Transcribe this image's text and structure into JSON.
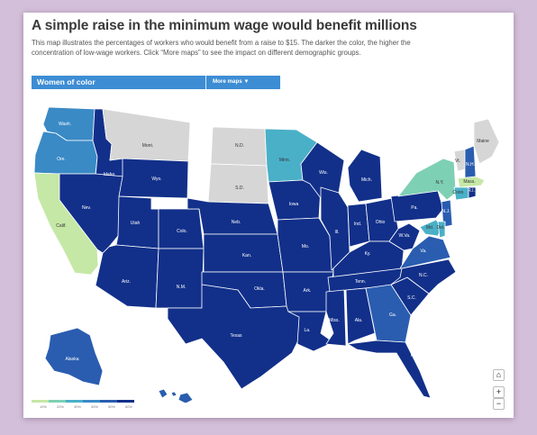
{
  "header": {
    "title": "A simple raise in the minimum wage would benefit millions",
    "description_1": "This map illustrates the percentages of workers who would benefit from a raise to $15. The darker the color, the higher the",
    "description_2": "concentration of low-wage workers. Click “More maps” to see the impact on different demographic groups."
  },
  "selector": {
    "label": "Women of color",
    "more_button": "More maps ▼"
  },
  "colors": {
    "no_data": "#d6d6d6",
    "c10": "#c5e8a6",
    "c20": "#7ed0b4",
    "c30": "#4ab0c8",
    "c40": "#3a8ac6",
    "c50": "#2a5db0",
    "c60": "#12308a"
  },
  "legend": {
    "ticks": [
      "10%",
      "20%",
      "30%",
      "40%",
      "50%",
      "60%"
    ]
  },
  "states": [
    {
      "label": "Wash.",
      "class": "c40"
    },
    {
      "label": "Ore.",
      "class": "c40"
    },
    {
      "label": "Calif.",
      "class": "c10"
    },
    {
      "label": "Idaho",
      "class": "c60"
    },
    {
      "label": "Nev.",
      "class": "c60"
    },
    {
      "label": "Mont.",
      "class": "no_data"
    },
    {
      "label": "Wyo.",
      "class": "c60"
    },
    {
      "label": "Utah",
      "class": "c60"
    },
    {
      "label": "Ariz.",
      "class": "c60"
    },
    {
      "label": "Colo.",
      "class": "c60"
    },
    {
      "label": "N.M.",
      "class": "c60"
    },
    {
      "label": "N.D.",
      "class": "no_data"
    },
    {
      "label": "S.D.",
      "class": "no_data"
    },
    {
      "label": "Neb.",
      "class": "c60"
    },
    {
      "label": "Kan.",
      "class": "c60"
    },
    {
      "label": "Okla.",
      "class": "c60"
    },
    {
      "label": "Texas",
      "class": "c60"
    },
    {
      "label": "Minn.",
      "class": "c30"
    },
    {
      "label": "Iowa",
      "class": "c60"
    },
    {
      "label": "Mo.",
      "class": "c60"
    },
    {
      "label": "Ark.",
      "class": "c60"
    },
    {
      "label": "La.",
      "class": "c60"
    },
    {
      "label": "Wis.",
      "class": "c60"
    },
    {
      "label": "Ill.",
      "class": "c60"
    },
    {
      "label": "Mich.",
      "class": "c60"
    },
    {
      "label": "Ind.",
      "class": "c60"
    },
    {
      "label": "Ohio",
      "class": "c60"
    },
    {
      "label": "Ky.",
      "class": "c60"
    },
    {
      "label": "Tenn.",
      "class": "c60"
    },
    {
      "label": "Miss.",
      "class": "c60"
    },
    {
      "label": "Ala.",
      "class": "c60"
    },
    {
      "label": "Ga.",
      "class": "c50"
    },
    {
      "label": "Fla.",
      "class": "c60"
    },
    {
      "label": "S.C.",
      "class": "c60"
    },
    {
      "label": "N.C.",
      "class": "c60"
    },
    {
      "label": "Va.",
      "class": "c50"
    },
    {
      "label": "W.Va.",
      "class": "c60"
    },
    {
      "label": "Pa.",
      "class": "c60"
    },
    {
      "label": "N.Y.",
      "class": "c20"
    },
    {
      "label": "Vt.",
      "class": "no_data"
    },
    {
      "label": "N.H.",
      "class": "c50"
    },
    {
      "label": "Maine",
      "class": "no_data"
    },
    {
      "label": "Mass.",
      "class": "c10"
    },
    {
      "label": "Conn.",
      "class": "c30"
    },
    {
      "label": "N.J.",
      "class": "c50"
    },
    {
      "label": "Md.",
      "class": "c30"
    },
    {
      "label": "Del.",
      "class": "c30"
    },
    {
      "label": "R.I.",
      "class": "c60"
    },
    {
      "label": "Alaska",
      "class": "c50"
    },
    {
      "label": "Hawaii",
      "class": "c50"
    }
  ],
  "map_controls": {
    "home": "⌂",
    "zoom_in": "+",
    "zoom_out": "−"
  }
}
